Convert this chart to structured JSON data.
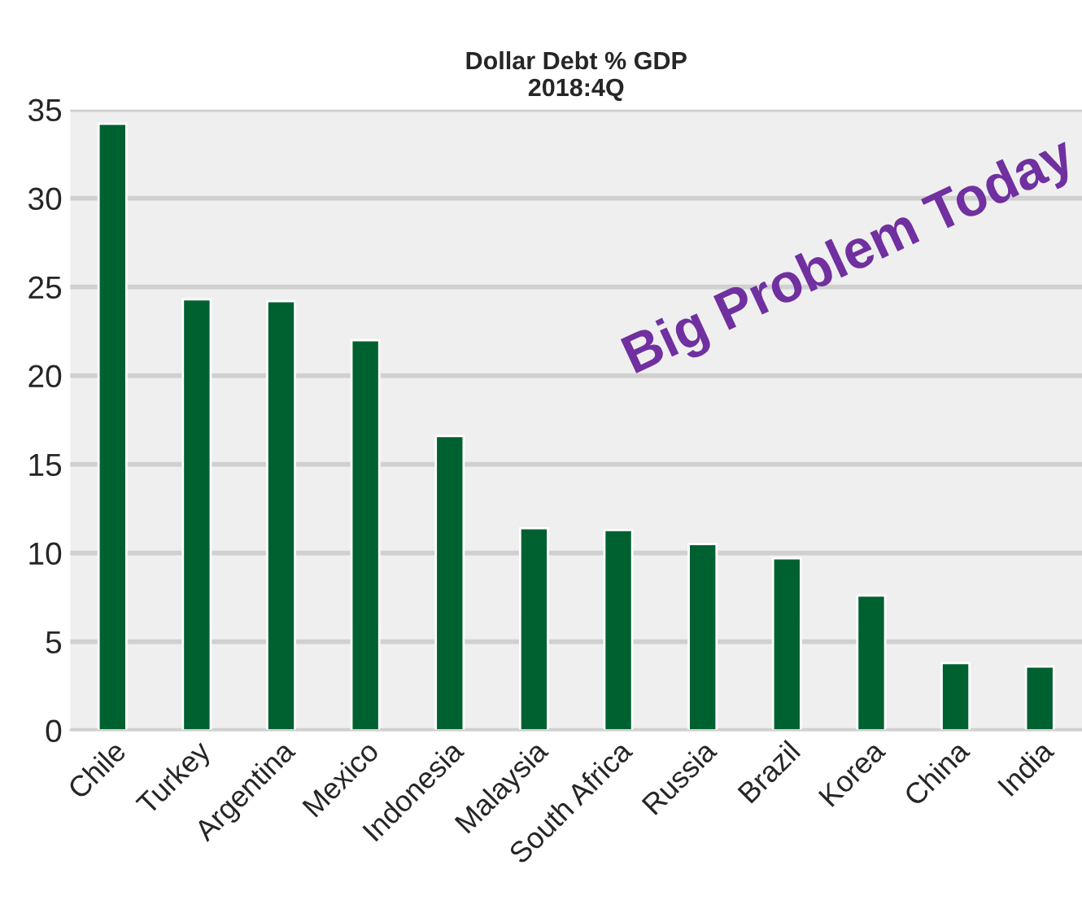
{
  "chart_data": {
    "type": "bar",
    "title": "Dollar Debt % GDP\n2018:4Q",
    "categories": [
      "Chile",
      "Turkey",
      "Argentina",
      "Mexico",
      "Indonesia",
      "Malaysia",
      "South Africa",
      "Russia",
      "Brazil",
      "Korea",
      "China",
      "India"
    ],
    "values": [
      34.2,
      24.3,
      24.2,
      22.0,
      16.6,
      11.4,
      11.3,
      10.5,
      9.7,
      7.6,
      3.8,
      3.6
    ],
    "color": "#006130",
    "ylim": [
      0,
      35
    ],
    "yticks": [
      0,
      5,
      10,
      15,
      20,
      25,
      30,
      35
    ],
    "grid": "y",
    "annotations": [
      "Big Problem Today"
    ]
  }
}
